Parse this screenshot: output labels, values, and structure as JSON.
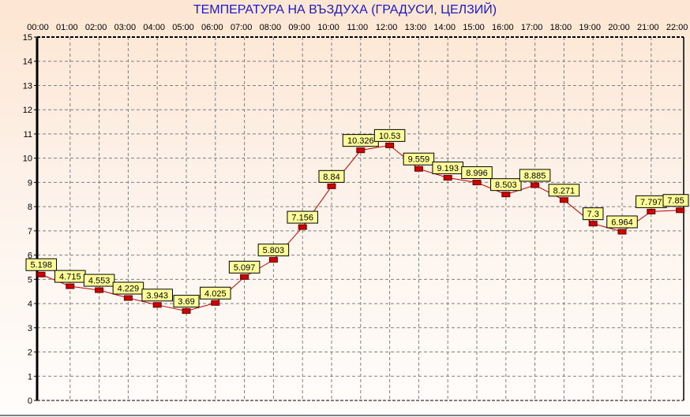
{
  "chart_data": {
    "type": "line",
    "title": "ТЕМПЕРАТУРА НА ВЪЗДУХА  (ГРАДУСИ, ЦЕЛЗИЙ)",
    "categories": [
      "00:00",
      "01:00",
      "02:00",
      "03:00",
      "04:00",
      "05:00",
      "06:00",
      "07:00",
      "08:00",
      "09:00",
      "10:00",
      "11:00",
      "12:00",
      "13:00",
      "14:00",
      "15:00",
      "16:00",
      "17:00",
      "18:00",
      "19:00",
      "20:00",
      "21:00",
      "22:00"
    ],
    "values": [
      5.198,
      4.715,
      4.553,
      4.229,
      3.943,
      3.69,
      4.025,
      5.097,
      5.803,
      7.156,
      8.84,
      10.326,
      10.53,
      9.559,
      9.193,
      8.996,
      8.503,
      8.885,
      8.271,
      7.3,
      6.964,
      7.797,
      7.85
    ],
    "data_labels": [
      "5.198",
      "4.715",
      "4.553",
      "4.229",
      "3.943",
      "3.69",
      "4.025",
      "5.097",
      "5.803",
      "7.156",
      "8.84",
      "10.326",
      "10.53",
      "9.559",
      "9.193",
      "8.996",
      "8.503",
      "8.885",
      "8.271",
      "7.3",
      "6.964",
      "7.797",
      "7.85"
    ],
    "ylim": [
      0,
      15
    ],
    "yticks": [
      "0",
      "1",
      "2",
      "3",
      "4",
      "5",
      "6",
      "7",
      "8",
      "9",
      "10",
      "11",
      "12",
      "13",
      "14",
      "15"
    ],
    "xaxis_position": "top",
    "grid": true,
    "colors": {
      "line": "#c00000",
      "marker": "#cc0000",
      "label_bg": "#ffff99",
      "title": "#1a1ac8"
    }
  }
}
